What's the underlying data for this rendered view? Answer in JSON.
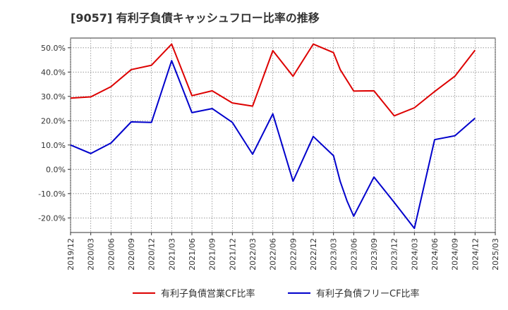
{
  "chart_data": {
    "type": "line",
    "title": "[9057]  有利子負債キャッシュフロー比率の推移",
    "xlabel": "",
    "ylabel": "",
    "ylim": [
      -26,
      54
    ],
    "yticks": [
      50,
      40,
      30,
      20,
      10,
      0,
      -10,
      -20
    ],
    "ytick_labels": [
      "50.0%",
      "40.0%",
      "30.0%",
      "20.0%",
      "10.0%",
      "0.0%",
      "-10.0%",
      "-20.0%"
    ],
    "xticks": [
      "2019/12",
      "2020/03",
      "2020/06",
      "2020/09",
      "2020/12",
      "2021/03",
      "2021/06",
      "2021/09",
      "2021/12",
      "2022/03",
      "2022/06",
      "2022/09",
      "2022/12",
      "2023/03",
      "2023/06",
      "2023/09",
      "2023/12",
      "2024/03",
      "2024/06",
      "2024/09",
      "2024/12",
      "2025/03"
    ],
    "grid": true,
    "legend_position": "bottom",
    "series": [
      {
        "name": "有利子負債営業CF比率",
        "color": "#dd0000",
        "points": [
          [
            "2019/12",
            29.3
          ],
          [
            "2020/03",
            29.8
          ],
          [
            "2020/06",
            34.0
          ],
          [
            "2020/09",
            41.0
          ],
          [
            "2020/12",
            42.8
          ],
          [
            "2021/03",
            51.5
          ],
          [
            "2021/06",
            30.3
          ],
          [
            "2021/09",
            32.3
          ],
          [
            "2021/12",
            27.3
          ],
          [
            "2022/03",
            26.0
          ],
          [
            "2022/06",
            48.8
          ],
          [
            "2022/09",
            38.3
          ],
          [
            "2022/12",
            51.5
          ],
          [
            "2023/03",
            48.0
          ],
          [
            "2023/04",
            41.0
          ],
          [
            "2023/06",
            32.2
          ],
          [
            "2023/09",
            32.3
          ],
          [
            "2023/12",
            22.0
          ],
          [
            "2024/03",
            25.3
          ],
          [
            "2024/06",
            32.0
          ],
          [
            "2024/09",
            38.3
          ],
          [
            "2024/12",
            49.0
          ]
        ]
      },
      {
        "name": "有利子負債フリーCF比率",
        "color": "#0000cc",
        "points": [
          [
            "2019/12",
            10.0
          ],
          [
            "2020/03",
            6.5
          ],
          [
            "2020/06",
            10.8
          ],
          [
            "2020/09",
            19.5
          ],
          [
            "2020/12",
            19.3
          ],
          [
            "2021/03",
            44.7
          ],
          [
            "2021/06",
            23.3
          ],
          [
            "2021/09",
            25.0
          ],
          [
            "2021/12",
            19.3
          ],
          [
            "2022/03",
            6.2
          ],
          [
            "2022/06",
            22.8
          ],
          [
            "2022/09",
            -4.9
          ],
          [
            "2022/12",
            13.5
          ],
          [
            "2023/03",
            5.6
          ],
          [
            "2023/04",
            -5.0
          ],
          [
            "2023/05",
            -13.0
          ],
          [
            "2023/06",
            -19.3
          ],
          [
            "2023/09",
            -3.2
          ],
          [
            "2023/12",
            -13.6
          ],
          [
            "2024/03",
            -24.3
          ],
          [
            "2024/06",
            12.2
          ],
          [
            "2024/09",
            13.8
          ],
          [
            "2024/12",
            21.0
          ]
        ]
      }
    ]
  }
}
